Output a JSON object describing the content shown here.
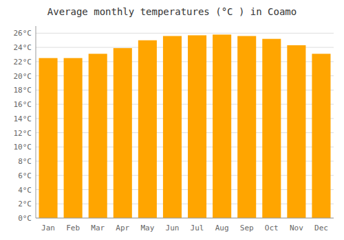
{
  "chart_data": {
    "type": "bar",
    "title": "Average monthly temperatures (°C ) in Coamo",
    "categories": [
      "Jan",
      "Feb",
      "Mar",
      "Apr",
      "May",
      "Jun",
      "Jul",
      "Aug",
      "Sep",
      "Oct",
      "Nov",
      "Dec"
    ],
    "values": [
      22.5,
      22.5,
      23.1,
      23.9,
      25.0,
      25.6,
      25.7,
      25.8,
      25.6,
      25.2,
      24.3,
      23.1
    ],
    "color": "#ffa500",
    "ylim": [
      0,
      27
    ],
    "yticks": [
      {
        "value": 0,
        "label": "0°C"
      },
      {
        "value": 2,
        "label": "2°C"
      },
      {
        "value": 4,
        "label": "4°C"
      },
      {
        "value": 6,
        "label": "6°C"
      },
      {
        "value": 8,
        "label": "8°C"
      },
      {
        "value": 10,
        "label": "10°C"
      },
      {
        "value": 12,
        "label": "12°C"
      },
      {
        "value": 14,
        "label": "14°C"
      },
      {
        "value": 16,
        "label": "16°C"
      },
      {
        "value": 18,
        "label": "18°C"
      },
      {
        "value": 20,
        "label": "20°C"
      },
      {
        "value": 22,
        "label": "22°C"
      },
      {
        "value": 24,
        "label": "24°C"
      },
      {
        "value": 26,
        "label": "26°C"
      }
    ],
    "grid": true
  }
}
